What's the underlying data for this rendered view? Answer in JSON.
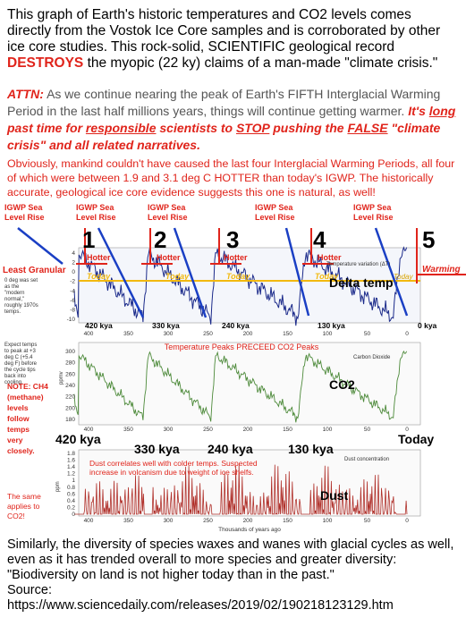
{
  "intro": {
    "segments": [
      "This graph of Earth's historic temperatures and CO2 levels comes directly from the Vostok Ice Core samples and is corroborated by other ice core studies.  This rock-solid, SCIENTIFIC geological record ",
      "DESTROYS",
      " the myopic (22 ky) claims of a man-made \"climate crisis.\""
    ]
  },
  "attn": {
    "label": "ATTN:",
    "text": " As we continue nearing the peak of Earth's FIFTH Interglacial Warming Period in the last half millions years, things will continue getting warmer.  ",
    "call": [
      "It's ",
      "long",
      " past time for ",
      "responsible",
      " scientists to ",
      "STOP",
      " pushing the ",
      "FALSE",
      " \"climate crisis\" and all related narratives."
    ]
  },
  "note": "Obviously, mankind couldn't have caused the last four Interglacial Warming Periods, all four of which were between 1.9 and 3.1 deg C HOTTER than today's IGWP.  The historically accurate, geological ice core evidence suggests this one is natural, as well!",
  "graph": {
    "sea_labels": [
      [
        "IGWP Sea",
        "Level Rise"
      ],
      [
        "IGWP Sea",
        "Level Rise"
      ],
      [
        "IGWP Sea",
        "Level Rise"
      ],
      [
        "IGWP Sea",
        "Level Rise"
      ],
      [
        "IGWP Sea",
        "Level Rise"
      ]
    ],
    "numbers": [
      "1",
      "2",
      "3",
      "4",
      "5"
    ],
    "hotter": [
      "Hotter",
      "Hotter",
      "Hotter",
      "Hotter"
    ],
    "today": [
      "Today",
      "Today",
      "Today",
      "Today"
    ],
    "warming": "Warming",
    "least": "Least Granular",
    "delta": "Delta temp",
    "co2": "CO2",
    "dust": "Dust",
    "kya_small": [
      "420 kya",
      "330 kya",
      "240 kya",
      "130 kya",
      "0 kya"
    ],
    "kya_big": [
      "420 kya",
      "330 kya",
      "240 kya",
      "130 kya",
      "Today"
    ],
    "temp_axis_title": "Temperature variation (ΔT)",
    "co2_title": "Temperature Peaks PRECEED CO2 Peaks",
    "co2_legend": "Carbon Dioxide",
    "dust_legend": "Dust concentration",
    "dust_note": [
      "Dust correlates well with colder temps.  Suspected",
      "increase in volcanism due to weight of ice shelfs."
    ],
    "x_title": "Thousands of years ago",
    "x_ticks": [
      400,
      350,
      300,
      250,
      200,
      150,
      100,
      50,
      0
    ],
    "temp_ticks": [
      4,
      2,
      0,
      -2,
      -4,
      -6,
      -8,
      -10
    ],
    "co2_ticks": [
      300,
      280,
      260,
      240,
      220,
      200,
      180
    ],
    "co2_unit": "ppmv",
    "dust_ticks": [
      1.8,
      1.6,
      1.4,
      1.2,
      1,
      0.8,
      0.6,
      0.4,
      0.2,
      0
    ],
    "dust_unit": "ppm",
    "zero_note": [
      "0 deg was set",
      "as the",
      "\"modern",
      "normal,\"",
      "roughly 1970s",
      "temps."
    ],
    "expect_note": [
      "Expect temps",
      "to peak at +3",
      "deg C (+5.4",
      "deg F) before",
      "the cycle tips",
      "back into",
      "cooling."
    ],
    "ch4_note": [
      "NOTE: CH4",
      "(methane)",
      "levels",
      "follow",
      "temps",
      "very",
      "closely."
    ],
    "same_note": [
      "The same",
      "applies to",
      "CO2!"
    ]
  },
  "outro": {
    "text": "Similarly, the diversity of species waxes and wanes with glacial cycles as well, even as it has trended overall to more species and greater diversity: \"Biodiversity on land is not higher today than in the past.\"",
    "source_label": "Source:",
    "url": "https://www.sciencedaily.com/releases/2019/02/190218123129.htm"
  }
}
